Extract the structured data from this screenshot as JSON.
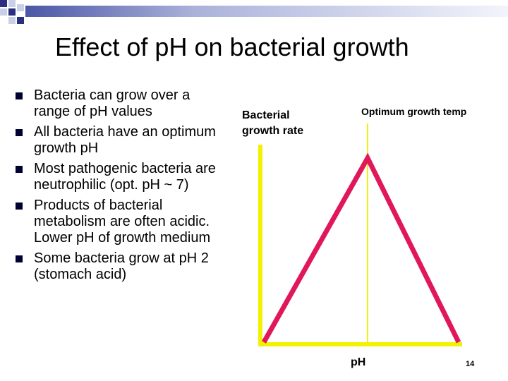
{
  "slide": {
    "title": "Effect of pH on bacterial growth",
    "page_number": "14",
    "bullets": [
      "Bacteria can grow over a range of pH values",
      "All bacteria have an optimum growth pH",
      "Most pathogenic bacteria are neutrophilic (opt. pH ~ 7)",
      "Products of bacterial metabolism are often acidic. Lower pH of growth medium",
      "Some bacteria grow at pH 2 (stomach acid)"
    ]
  },
  "diagram": {
    "y_axis_label": "Bacterial\ngrowth rate",
    "x_axis_label": "pH",
    "optimum_label": "Optimum growth temp",
    "colors": {
      "axis": "#f2f200",
      "curve": "#e0185a",
      "optimum_line": "#f2f200",
      "bullet": "#000033",
      "deco_dark": "#2a2f80",
      "deco_light": "#c9cfe6"
    }
  }
}
